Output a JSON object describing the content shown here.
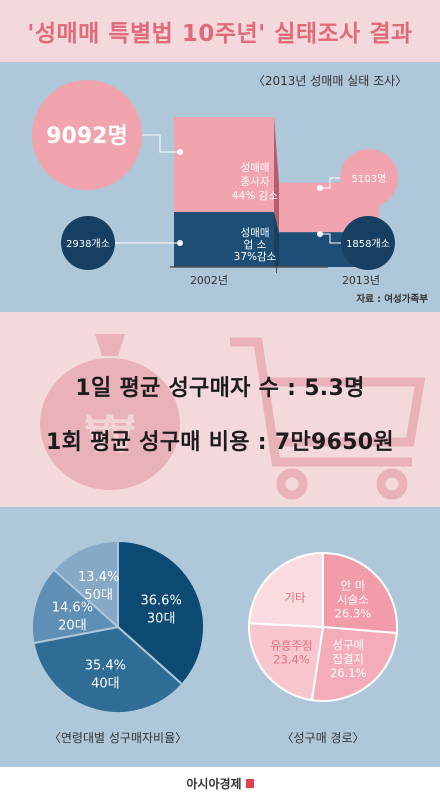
{
  "title": "'성매매 특별법 10주년' 실태조사 결과",
  "survey_label": "〈2013년 성매매 실태 조사〉",
  "source_label": "자료 : 여성가족부",
  "stats": {
    "line1": "1일 평균 성구매자 수 : 5.3명",
    "line2": "1회 평균 성구매 비용 : 7만9650원"
  },
  "footer_brand": "아시아경제",
  "chart_data": [
    {
      "type": "bar",
      "categories": [
        "2002년",
        "2013년"
      ],
      "series": [
        {
          "name": "성매매 종사자",
          "values": [
            9092,
            5103
          ],
          "value_labels": [
            "9092명",
            "5103명"
          ],
          "color": "#f1a3ae"
        },
        {
          "name": "성매매 업소",
          "values": [
            2938,
            1858
          ],
          "value_labels": [
            "2938개소",
            "1858개소"
          ],
          "color": "#1c4e76"
        }
      ],
      "annotations": [
        {
          "lines": [
            "성매매",
            "종사자",
            "44% 감소"
          ]
        },
        {
          "lines": [
            "성매매",
            "업 소",
            "37%감소"
          ]
        }
      ]
    },
    {
      "type": "pie",
      "title": "〈연령대별 성구매자비율〉",
      "slices": [
        {
          "label": "30대",
          "value": 36.6,
          "text": "36.6%",
          "color": "#0c4a74"
        },
        {
          "label": "40대",
          "value": 35.4,
          "text": "35.4%",
          "color": "#2f6d96"
        },
        {
          "label": "20대",
          "value": 14.6,
          "text": "14.6%",
          "color": "#5f8fb4"
        },
        {
          "label": "50대",
          "value": 13.4,
          "text": "13.4%",
          "color": "#85a9c6"
        }
      ]
    },
    {
      "type": "pie",
      "title": "〈성구매 경로〉",
      "slices": [
        {
          "label": "안 마 시술소",
          "value": 26.3,
          "text": "26.3%",
          "color": "#f29ba9"
        },
        {
          "label": "성구매 집결지",
          "value": 26.1,
          "text": "26.1%",
          "color": "#f4adb8"
        },
        {
          "label": "유흥주점",
          "value": 23.4,
          "text": "23.4%",
          "color": "#f8c6ce"
        },
        {
          "label": "기타",
          "value": 24.2,
          "text": "",
          "color": "#fadbe0"
        }
      ]
    }
  ]
}
